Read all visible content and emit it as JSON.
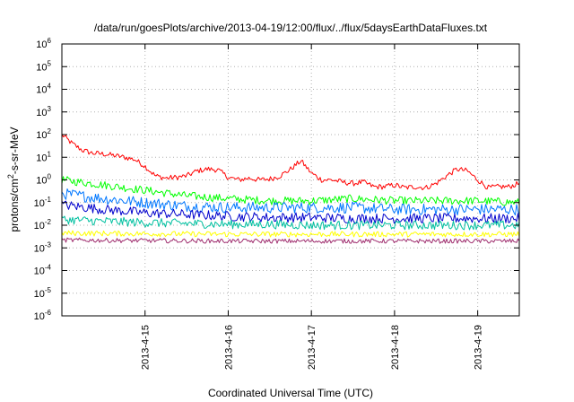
{
  "chart_data": {
    "type": "line",
    "title": "/data/run/goesPlots/archive/2013-04-19/12:00/flux/../flux/5daysEarthDataFluxes.txt",
    "xlabel": "Coordinated Universal Time (UTC)",
    "ylabel": {
      "pre": "protons/cm",
      "sup": "2",
      "post": "-s-sr-MeV"
    },
    "y_scale": "log",
    "ylim": [
      1e-06,
      1000000.0
    ],
    "xlim": [
      "2013-04-14 00:00",
      "2013-04-19 12:00"
    ],
    "grid": true,
    "legend": "none",
    "x_ticks": [
      {
        "value": "2013-04-15 00:00",
        "label": "2013-4-15"
      },
      {
        "value": "2013-04-16 00:00",
        "label": "2013-4-16"
      },
      {
        "value": "2013-04-17 00:00",
        "label": "2013-4-17"
      },
      {
        "value": "2013-04-18 00:00",
        "label": "2013-4-18"
      },
      {
        "value": "2013-04-19 00:00",
        "label": "2013-4-19"
      }
    ],
    "y_ticks": [
      {
        "value": 1e-06,
        "base": "10",
        "exp": "-6"
      },
      {
        "value": 1e-05,
        "base": "10",
        "exp": "-5"
      },
      {
        "value": 0.0001,
        "base": "10",
        "exp": "-4"
      },
      {
        "value": 0.001,
        "base": "10",
        "exp": "-3"
      },
      {
        "value": 0.01,
        "base": "10",
        "exp": "-2"
      },
      {
        "value": 0.1,
        "base": "10",
        "exp": "-1"
      },
      {
        "value": 1,
        "base": "10",
        "exp": "0"
      },
      {
        "value": 10,
        "base": "10",
        "exp": "1"
      },
      {
        "value": 100,
        "base": "10",
        "exp": "2"
      },
      {
        "value": 1000,
        "base": "10",
        "exp": "3"
      },
      {
        "value": 10000,
        "base": "10",
        "exp": "4"
      },
      {
        "value": 100000,
        "base": "10",
        "exp": "5"
      },
      {
        "value": 1000000,
        "base": "10",
        "exp": "6"
      }
    ],
    "series": [
      {
        "color": "#ff0000",
        "x": [
          "2013-04-14 00:00",
          "2013-04-14 03:00",
          "2013-04-14 06:00",
          "2013-04-14 09:00",
          "2013-04-14 12:00",
          "2013-04-14 15:00",
          "2013-04-14 18:00",
          "2013-04-14 21:00",
          "2013-04-15 00:00",
          "2013-04-15 03:00",
          "2013-04-15 06:00",
          "2013-04-15 09:00",
          "2013-04-15 12:00",
          "2013-04-15 15:00",
          "2013-04-15 18:00",
          "2013-04-15 21:00",
          "2013-04-16 00:00",
          "2013-04-16 03:00",
          "2013-04-16 06:00",
          "2013-04-16 09:00",
          "2013-04-16 12:00",
          "2013-04-16 15:00",
          "2013-04-16 18:00",
          "2013-04-16 21:00",
          "2013-04-17 00:00",
          "2013-04-17 03:00",
          "2013-04-17 06:00",
          "2013-04-17 09:00",
          "2013-04-17 12:00",
          "2013-04-17 15:00",
          "2013-04-17 18:00",
          "2013-04-17 21:00",
          "2013-04-18 00:00",
          "2013-04-18 03:00",
          "2013-04-18 06:00",
          "2013-04-18 09:00",
          "2013-04-18 12:00",
          "2013-04-18 15:00",
          "2013-04-18 18:00",
          "2013-04-18 21:00",
          "2013-04-19 00:00",
          "2013-04-19 03:00",
          "2013-04-19 06:00",
          "2013-04-19 09:00",
          "2013-04-19 12:00"
        ],
        "values": [
          100,
          40,
          20,
          15,
          14,
          12,
          10,
          8,
          4,
          1.5,
          1.2,
          1.3,
          1.5,
          2.5,
          3,
          2.8,
          1.3,
          1.0,
          1.2,
          1.0,
          1.1,
          1.5,
          3,
          7,
          2,
          1.0,
          1.0,
          0.8,
          0.7,
          0.8,
          0.5,
          0.5,
          0.6,
          0.45,
          0.5,
          0.45,
          0.7,
          1.5,
          3,
          2.5,
          1.0,
          0.45,
          0.5,
          0.5,
          0.7
        ]
      },
      {
        "color": "#00ff00",
        "x": [
          "2013-04-14 00:00",
          "2013-04-14 12:00",
          "2013-04-15 00:00",
          "2013-04-15 12:00",
          "2013-04-16 00:00",
          "2013-04-16 12:00",
          "2013-04-17 00:00",
          "2013-04-17 12:00",
          "2013-04-18 00:00",
          "2013-04-18 12:00",
          "2013-04-19 00:00",
          "2013-04-19 12:00"
        ],
        "values": [
          1.0,
          0.6,
          0.35,
          0.2,
          0.15,
          0.12,
          0.12,
          0.15,
          0.12,
          0.12,
          0.12,
          0.1
        ]
      },
      {
        "color": "#0077ff",
        "x": [
          "2013-04-14 00:00",
          "2013-04-14 12:00",
          "2013-04-15 00:00",
          "2013-04-15 12:00",
          "2013-04-16 00:00",
          "2013-04-16 12:00",
          "2013-04-17 00:00",
          "2013-04-17 12:00",
          "2013-04-18 00:00",
          "2013-04-18 12:00",
          "2013-04-19 00:00",
          "2013-04-19 12:00"
        ],
        "values": [
          0.25,
          0.15,
          0.1,
          0.07,
          0.06,
          0.06,
          0.06,
          0.06,
          0.05,
          0.05,
          0.05,
          0.05
        ]
      },
      {
        "color": "#0000cc",
        "x": [
          "2013-04-14 00:00",
          "2013-04-14 12:00",
          "2013-04-15 00:00",
          "2013-04-15 12:00",
          "2013-04-16 00:00",
          "2013-04-16 12:00",
          "2013-04-17 00:00",
          "2013-04-17 12:00",
          "2013-04-18 00:00",
          "2013-04-18 12:00",
          "2013-04-19 00:00",
          "2013-04-19 12:00"
        ],
        "values": [
          0.08,
          0.05,
          0.035,
          0.03,
          0.025,
          0.022,
          0.022,
          0.02,
          0.02,
          0.02,
          0.02,
          0.02
        ]
      },
      {
        "color": "#00c0a0",
        "x": [
          "2013-04-14 00:00",
          "2013-04-14 12:00",
          "2013-04-15 00:00",
          "2013-04-15 12:00",
          "2013-04-16 00:00",
          "2013-04-16 12:00",
          "2013-04-17 00:00",
          "2013-04-17 12:00",
          "2013-04-18 00:00",
          "2013-04-18 12:00",
          "2013-04-19 00:00",
          "2013-04-19 12:00"
        ],
        "values": [
          0.018,
          0.015,
          0.013,
          0.012,
          0.011,
          0.011,
          0.01,
          0.01,
          0.01,
          0.01,
          0.01,
          0.01
        ]
      },
      {
        "color": "#ffff00",
        "x": [
          "2013-04-14 00:00",
          "2013-04-15 00:00",
          "2013-04-16 00:00",
          "2013-04-17 00:00",
          "2013-04-18 00:00",
          "2013-04-19 00:00",
          "2013-04-19 12:00"
        ],
        "values": [
          0.0045,
          0.0042,
          0.004,
          0.004,
          0.004,
          0.004,
          0.004
        ]
      },
      {
        "color": "#a03070",
        "x": [
          "2013-04-14 00:00",
          "2013-04-15 00:00",
          "2013-04-16 00:00",
          "2013-04-17 00:00",
          "2013-04-18 00:00",
          "2013-04-19 00:00",
          "2013-04-19 12:00"
        ],
        "values": [
          0.0022,
          0.0021,
          0.002,
          0.002,
          0.002,
          0.002,
          0.002
        ]
      }
    ]
  }
}
